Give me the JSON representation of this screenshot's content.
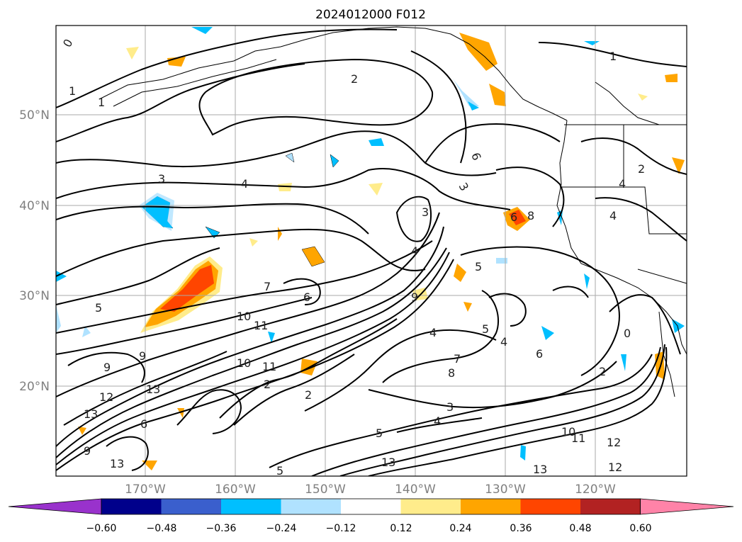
{
  "title": "2024012000 F012",
  "lat_labels": [
    "50°N",
    "40°N",
    "30°N",
    "20°N"
  ],
  "lon_labels": [
    "170°W",
    "160°W",
    "150°W",
    "140°W",
    "130°W",
    "120°W"
  ],
  "colorbar": {
    "ticks": [
      "−0.60",
      "−0.48",
      "−0.36",
      "−0.24",
      "−0.12",
      "0.12",
      "0.24",
      "0.36",
      "0.48",
      "0.60"
    ],
    "colors": [
      "#9932cc",
      "#00008b",
      "#3a5fcd",
      "#00bfff",
      "#b0e2ff",
      "#ffffff",
      "#ffec8b",
      "#ffa500",
      "#ff4500",
      "#b22222",
      "#ff83a8"
    ]
  },
  "contour_labels": {
    "c1": "0",
    "c2": "1",
    "c3": "1",
    "c4": "2",
    "c5": "1",
    "c6": "3",
    "c7": "4",
    "c8": "3",
    "c9": "6",
    "c10": "4",
    "c11": "4",
    "c12": "3",
    "c13": "2",
    "c14": "5",
    "c15": "6",
    "c16": "9",
    "c17": "10",
    "c18": "11",
    "c19": "10",
    "c20": "11",
    "c21": "9",
    "c22": "12",
    "c23": "13",
    "c24": "13",
    "c25": "6",
    "c26": "2",
    "c27": "8",
    "c28": "7",
    "c29": "3",
    "c30": "4",
    "c31": "5",
    "c32": "5",
    "c33": "4",
    "c34": "6",
    "c35": "2",
    "c36": "9",
    "c37": "10",
    "c38": "11",
    "c39": "12",
    "c40": "13",
    "c41": "12",
    "c42": "13",
    "c43": "9",
    "c44": "5",
    "c45": "6",
    "c46": "2",
    "c47": "0",
    "c48": "4",
    "c49": "4",
    "c50": "5",
    "c51": "8",
    "c52": "7",
    "c53": "13"
  }
}
